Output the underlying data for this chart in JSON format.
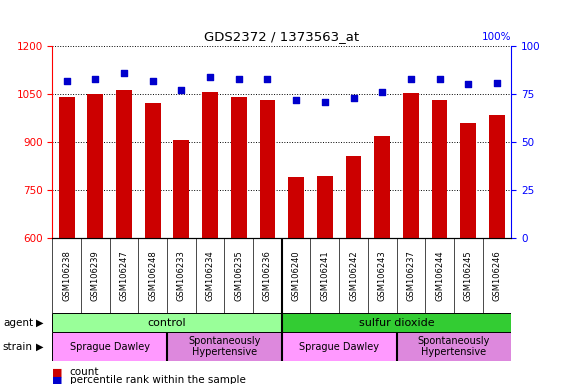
{
  "title": "GDS2372 / 1373563_at",
  "samples": [
    "GSM106238",
    "GSM106239",
    "GSM106247",
    "GSM106248",
    "GSM106233",
    "GSM106234",
    "GSM106235",
    "GSM106236",
    "GSM106240",
    "GSM106241",
    "GSM106242",
    "GSM106243",
    "GSM106237",
    "GSM106244",
    "GSM106245",
    "GSM106246"
  ],
  "counts": [
    1040,
    1050,
    1062,
    1022,
    905,
    1057,
    1042,
    1032,
    790,
    795,
    858,
    920,
    1052,
    1032,
    960,
    985
  ],
  "percentile_ranks": [
    82,
    83,
    86,
    82,
    77,
    84,
    83,
    83,
    72,
    71,
    73,
    76,
    83,
    83,
    80,
    81
  ],
  "ylim_left": [
    600,
    1200
  ],
  "ylim_right": [
    0,
    100
  ],
  "yticks_left": [
    600,
    750,
    900,
    1050,
    1200
  ],
  "yticks_right": [
    0,
    25,
    50,
    75,
    100
  ],
  "bar_color": "#cc0000",
  "dot_color": "#0000cc",
  "agent_groups": [
    {
      "label": "control",
      "start": 0,
      "end": 8,
      "color": "#99ff99"
    },
    {
      "label": "sulfur dioxide",
      "start": 8,
      "end": 16,
      "color": "#33cc33"
    }
  ],
  "strain_groups": [
    {
      "label": "Sprague Dawley",
      "start": 0,
      "end": 4,
      "color": "#ff99ff"
    },
    {
      "label": "Spontaneously\nHypertensive",
      "start": 4,
      "end": 8,
      "color": "#dd88dd"
    },
    {
      "label": "Sprague Dawley",
      "start": 8,
      "end": 12,
      "color": "#ff99ff"
    },
    {
      "label": "Spontaneously\nHypertensive",
      "start": 12,
      "end": 16,
      "color": "#dd88dd"
    }
  ],
  "bar_color_red": "#cc0000",
  "dot_color_blue": "#0000cc",
  "grid_color": "black",
  "bg_xtick": "#cccccc",
  "fig_width": 5.81,
  "fig_height": 3.84,
  "dpi": 100
}
